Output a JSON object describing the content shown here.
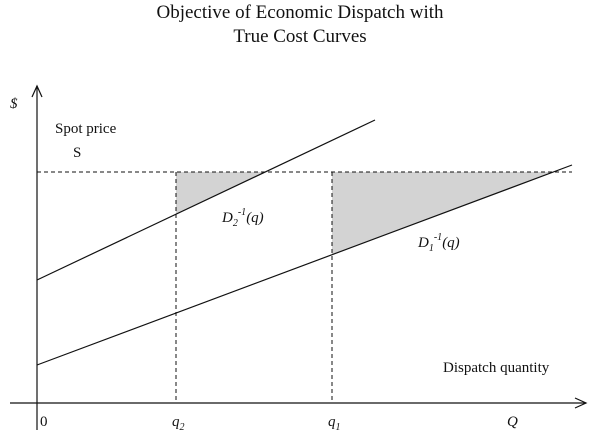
{
  "title": [
    "Objective of Economic Dispatch with",
    "True Cost Curves"
  ],
  "y_axis_label": "$",
  "x_axis_label": "Dispatch quantity",
  "origin_label": "0",
  "spot_price": {
    "label": "Spot price",
    "symbol": "S"
  },
  "curves": [
    {
      "base": "D",
      "sub": "2",
      "sup": "-1",
      "arg": "(q)"
    },
    {
      "base": "D",
      "sub": "1",
      "sup": "-1",
      "arg": "(q)"
    }
  ],
  "x_ticks": [
    {
      "base": "q",
      "sub": "2"
    },
    {
      "base": "q",
      "sub": "1"
    },
    {
      "base": "Q"
    }
  ]
}
